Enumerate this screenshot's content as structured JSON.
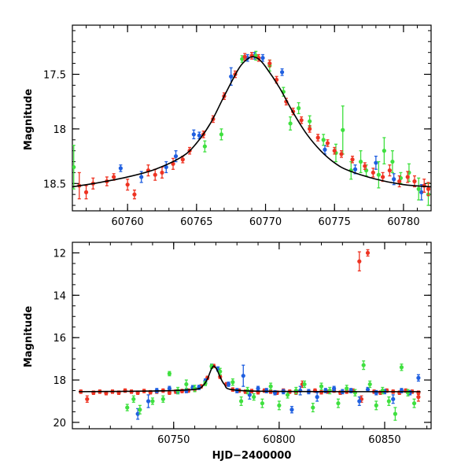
{
  "chart_data": [
    {
      "type": "scatter",
      "xlabel": "",
      "ylabel": "Magnitude",
      "xlim": [
        60756,
        60782
      ],
      "ylim": [
        18.75,
        17.05
      ],
      "y_inverted": true,
      "x_ticks": [
        60760,
        60765,
        60770,
        60775,
        60780
      ],
      "y_ticks": [
        17.5,
        18,
        18.5
      ],
      "grid": false,
      "colors": {
        "blue": "#1f5fe0",
        "green": "#3fe03f",
        "red": "#ee3322",
        "model": "#000000"
      },
      "model_curve": {
        "x": [
          60756.0,
          60758,
          60760,
          60762,
          60764,
          60765,
          60766,
          60767,
          60768,
          60768.5,
          60769,
          60769.5,
          60770,
          60771,
          60772,
          60773,
          60774,
          60775,
          60776,
          60778,
          60780,
          60782
        ],
        "y": [
          18.53,
          18.49,
          18.44,
          18.37,
          18.25,
          18.13,
          17.95,
          17.7,
          17.46,
          17.38,
          17.34,
          17.36,
          17.43,
          17.62,
          17.85,
          18.05,
          18.2,
          18.31,
          18.38,
          18.46,
          18.51,
          18.53
        ]
      },
      "series": [
        {
          "color": "blue",
          "x": [
            60759.5,
            60761,
            60762.8,
            60763.5,
            60764.8,
            60765.2,
            60767.5,
            60768.7,
            60769.2,
            60769.8,
            60771.2,
            60774.3,
            60776.5,
            60778,
            60779.3,
            60781.3
          ],
          "y": [
            18.36,
            18.44,
            18.35,
            18.25,
            18.05,
            18.06,
            17.52,
            17.35,
            17.33,
            17.35,
            17.48,
            18.19,
            18.37,
            18.31,
            18.46,
            18.58
          ],
          "err": [
            0.03,
            0.05,
            0.05,
            0.05,
            0.04,
            0.03,
            0.08,
            0.03,
            0.03,
            0.03,
            0.03,
            0.04,
            0.04,
            0.06,
            0.05,
            0.07
          ]
        },
        {
          "color": "green",
          "x": [
            60756.1,
            60765.6,
            60766.8,
            60768.3,
            60769.3,
            60770.3,
            60771.3,
            60771.8,
            60772.4,
            60773.2,
            60774.2,
            60775.1,
            60775.6,
            60776.2,
            60776.9,
            60777.3,
            60778.2,
            60778.6,
            60779.2,
            60779.8,
            60780.4,
            60781.1,
            60781.8
          ],
          "y": [
            18.35,
            18.16,
            18.05,
            17.36,
            17.33,
            17.42,
            17.66,
            17.95,
            17.81,
            17.93,
            18.1,
            18.22,
            18.01,
            18.38,
            18.3,
            18.38,
            18.42,
            18.2,
            18.3,
            18.45,
            18.4,
            18.55,
            18.6
          ],
          "err": [
            0.2,
            0.05,
            0.05,
            0.03,
            0.04,
            0.05,
            0.04,
            0.06,
            0.05,
            0.05,
            0.05,
            0.08,
            0.22,
            0.08,
            0.1,
            0.05,
            0.12,
            0.12,
            0.1,
            0.05,
            0.08,
            0.1,
            0.1
          ]
        },
        {
          "color": "red",
          "x": [
            60756.5,
            60757,
            60757.5,
            60758.5,
            60759,
            60760,
            60760.5,
            60761.5,
            60762,
            60762.5,
            60763.3,
            60764,
            60764.5,
            60765.5,
            60766.2,
            60767,
            60767.8,
            60768.5,
            60769,
            60769.5,
            60770.3,
            60770.8,
            60771.5,
            60772,
            60772.6,
            60773.2,
            60773.8,
            60774.5,
            60775,
            60775.5,
            60776.3,
            60777.2,
            60777.8,
            60778.5,
            60779,
            60779.7,
            60780.3,
            60780.8,
            60781.5,
            60781.8
          ],
          "y": [
            18.52,
            18.58,
            18.5,
            18.48,
            18.44,
            18.51,
            18.6,
            18.38,
            18.42,
            18.4,
            18.32,
            18.28,
            18.2,
            18.05,
            17.91,
            17.7,
            17.5,
            17.34,
            17.33,
            17.35,
            17.4,
            17.55,
            17.75,
            17.84,
            17.92,
            18.0,
            18.08,
            18.13,
            18.2,
            18.23,
            18.28,
            18.34,
            18.4,
            18.44,
            18.38,
            18.48,
            18.44,
            18.48,
            18.52,
            18.55
          ],
          "err": [
            0.12,
            0.06,
            0.05,
            0.04,
            0.03,
            0.05,
            0.04,
            0.05,
            0.05,
            0.05,
            0.05,
            0.03,
            0.03,
            0.03,
            0.03,
            0.03,
            0.03,
            0.03,
            0.03,
            0.03,
            0.03,
            0.03,
            0.03,
            0.03,
            0.03,
            0.03,
            0.03,
            0.03,
            0.03,
            0.03,
            0.03,
            0.03,
            0.04,
            0.04,
            0.05,
            0.05,
            0.05,
            0.05,
            0.06,
            0.06
          ]
        }
      ]
    },
    {
      "type": "scatter",
      "xlabel": "HJD−2400000",
      "ylabel": "Magnitude",
      "xlim": [
        60702,
        60872
      ],
      "ylim": [
        20.3,
        11.5
      ],
      "y_inverted": true,
      "x_ticks": [
        60750,
        60800,
        60850
      ],
      "y_ticks": [
        12,
        14,
        16,
        18,
        20
      ],
      "grid": false,
      "colors": {
        "blue": "#1f5fe0",
        "green": "#3fe03f",
        "red": "#ee3322",
        "model": "#000000"
      },
      "model_curve": {
        "x": [
          60705,
          60740,
          60760,
          60764,
          60766,
          60767,
          60768,
          60769,
          60770,
          60771,
          60772,
          60774,
          60778,
          60800,
          60867
        ],
        "y": [
          18.55,
          18.52,
          18.44,
          18.25,
          17.95,
          17.7,
          17.46,
          17.34,
          17.43,
          17.62,
          17.85,
          18.2,
          18.46,
          18.54,
          18.55
        ]
      },
      "series": [
        {
          "color": "red",
          "x": [
            60706,
            60709,
            60712,
            60715,
            60718,
            60721,
            60724,
            60727,
            60730,
            60733,
            60736,
            60739,
            60742,
            60745,
            60748,
            60751,
            60754,
            60757,
            60760,
            60763,
            60766,
            60769,
            60772,
            60775,
            60778,
            60781,
            60784,
            60787,
            60790,
            60793,
            60796,
            60799,
            60802,
            60805,
            60808,
            60811,
            60814,
            60817,
            60820,
            60823,
            60826,
            60829,
            60832,
            60835,
            60838,
            60839,
            60842,
            60845,
            60848,
            60851,
            60854,
            60857,
            60860,
            60863,
            60866,
            60866
          ],
          "y": [
            18.55,
            18.9,
            18.6,
            18.55,
            18.62,
            18.55,
            18.6,
            18.5,
            18.55,
            18.6,
            18.52,
            18.58,
            18.55,
            18.5,
            18.6,
            18.55,
            18.52,
            18.5,
            18.44,
            18.3,
            17.9,
            17.34,
            17.85,
            18.2,
            18.45,
            18.5,
            18.55,
            18.52,
            18.58,
            18.5,
            18.55,
            18.6,
            18.5,
            18.55,
            18.6,
            18.2,
            18.55,
            18.5,
            18.58,
            18.55,
            18.5,
            18.6,
            18.55,
            18.5,
            12.4,
            18.9,
            12.0,
            18.55,
            18.6,
            18.5,
            18.55,
            18.6,
            18.5,
            18.55,
            18.6,
            18.8
          ],
          "err": [
            0.08,
            0.15,
            0.08,
            0.08,
            0.08,
            0.08,
            0.08,
            0.08,
            0.08,
            0.08,
            0.08,
            0.08,
            0.08,
            0.08,
            0.08,
            0.08,
            0.08,
            0.08,
            0.08,
            0.08,
            0.08,
            0.08,
            0.08,
            0.08,
            0.08,
            0.08,
            0.08,
            0.08,
            0.08,
            0.08,
            0.08,
            0.08,
            0.08,
            0.08,
            0.08,
            0.15,
            0.08,
            0.08,
            0.08,
            0.08,
            0.08,
            0.08,
            0.08,
            0.08,
            0.45,
            0.15,
            0.15,
            0.08,
            0.08,
            0.08,
            0.08,
            0.08,
            0.08,
            0.08,
            0.08,
            0.2
          ]
        },
        {
          "color": "blue",
          "x": [
            60733,
            60738,
            60742,
            60748,
            60752,
            60756,
            60759,
            60762,
            60765,
            60768,
            60771,
            60776,
            60780,
            60783,
            60786,
            60790,
            60794,
            60798,
            60802,
            60806,
            60810,
            60814,
            60818,
            60822,
            60826,
            60830,
            60834,
            60838,
            60842,
            60846,
            60850,
            60854,
            60858,
            60862,
            60866
          ],
          "y": [
            19.6,
            19.0,
            18.5,
            18.4,
            18.55,
            18.5,
            18.36,
            18.35,
            18.05,
            17.35,
            17.48,
            18.2,
            18.5,
            17.8,
            18.7,
            18.4,
            18.5,
            18.6,
            18.55,
            19.4,
            18.5,
            18.55,
            18.8,
            18.5,
            18.4,
            18.55,
            18.5,
            19.0,
            18.45,
            18.6,
            18.55,
            18.9,
            18.5,
            18.6,
            17.9
          ],
          "err": [
            0.25,
            0.3,
            0.1,
            0.1,
            0.1,
            0.1,
            0.1,
            0.1,
            0.1,
            0.1,
            0.1,
            0.1,
            0.1,
            0.5,
            0.2,
            0.1,
            0.1,
            0.1,
            0.1,
            0.15,
            0.2,
            0.1,
            0.2,
            0.1,
            0.1,
            0.1,
            0.1,
            0.2,
            0.1,
            0.1,
            0.1,
            0.2,
            0.1,
            0.1,
            0.15
          ]
        },
        {
          "color": "green",
          "x": [
            60728,
            60731,
            60734,
            60740,
            60745,
            60748,
            60752,
            60756,
            60760,
            60765,
            60768,
            60772,
            60778,
            60782,
            60785,
            60788,
            60792,
            60796,
            60800,
            60804,
            60808,
            60812,
            60816,
            60820,
            60824,
            60828,
            60832,
            60836,
            60840,
            60843,
            60846,
            60849,
            60852,
            60855,
            60858,
            60861,
            60864
          ],
          "y": [
            19.3,
            18.9,
            19.4,
            19.0,
            18.9,
            17.7,
            18.5,
            18.2,
            18.4,
            18.16,
            17.36,
            17.6,
            18.1,
            19.0,
            18.5,
            18.8,
            19.1,
            18.3,
            19.2,
            18.7,
            18.5,
            18.2,
            19.3,
            18.3,
            18.5,
            19.1,
            18.4,
            18.6,
            17.3,
            18.2,
            19.2,
            18.5,
            19.0,
            19.6,
            17.4,
            18.6,
            19.1
          ],
          "err": [
            0.15,
            0.15,
            0.2,
            0.15,
            0.15,
            0.1,
            0.15,
            0.2,
            0.15,
            0.1,
            0.1,
            0.15,
            0.15,
            0.2,
            0.15,
            0.15,
            0.2,
            0.15,
            0.2,
            0.15,
            0.15,
            0.15,
            0.2,
            0.15,
            0.15,
            0.2,
            0.15,
            0.15,
            0.2,
            0.15,
            0.2,
            0.15,
            0.2,
            0.3,
            0.15,
            0.15,
            0.2
          ]
        }
      ]
    }
  ]
}
